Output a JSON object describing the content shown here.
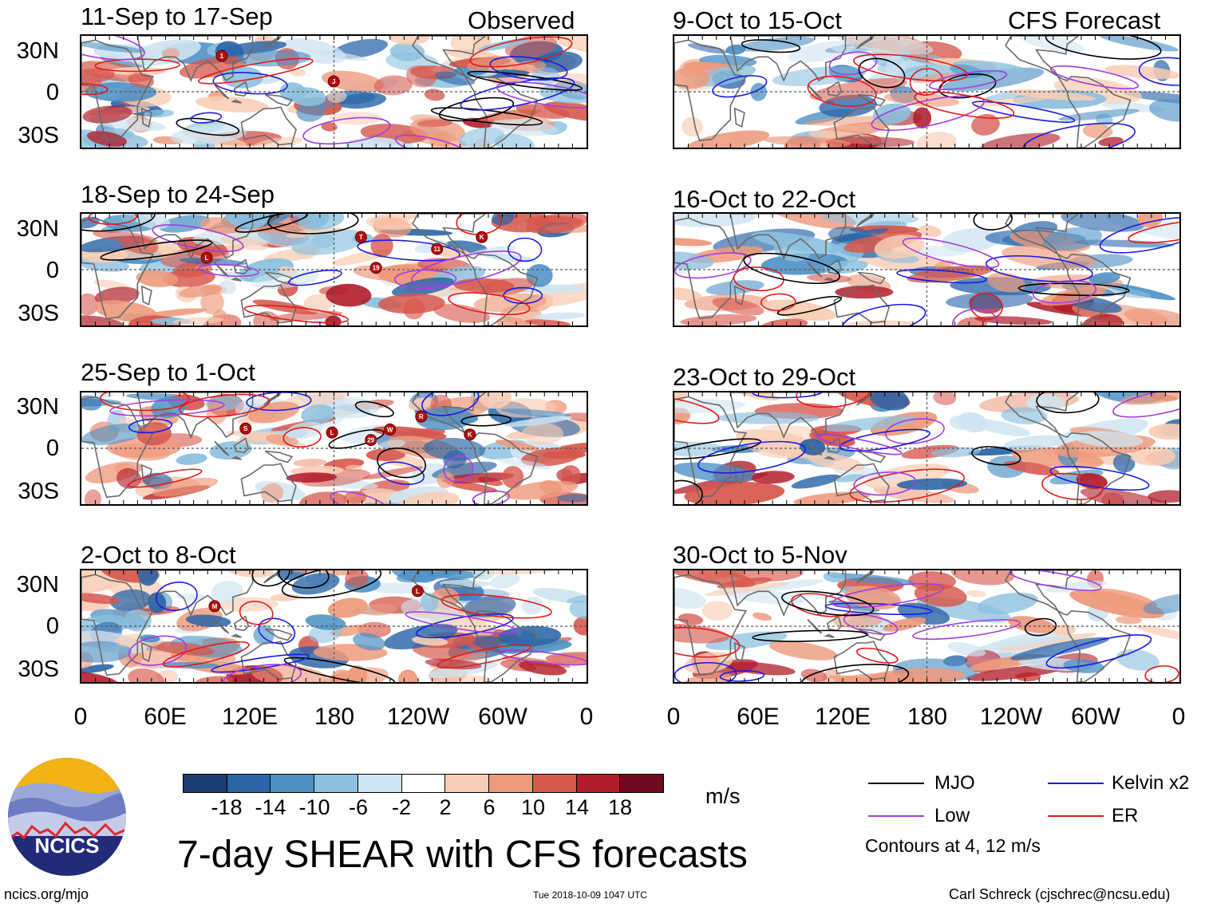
{
  "observed_label": "Observed",
  "forecast_label": "CFS Forecast",
  "chart_data": {
    "type": "heatmap",
    "title": "7-day SHEAR with CFS forecasts",
    "variable": "vertical wind shear anomaly",
    "units": "m/s",
    "y_ticks": [
      "30N",
      "0",
      "30S"
    ],
    "x_ticks": [
      "0",
      "60E",
      "120E",
      "180",
      "120W",
      "60W",
      "0"
    ],
    "x_range": [
      0,
      360
    ],
    "y_range": [
      -40,
      40
    ],
    "colorbar": {
      "levels": [
        "-18",
        "-14",
        "-10",
        "-6",
        "-2",
        "2",
        "6",
        "10",
        "14",
        "18"
      ],
      "colors": [
        "#1a3c6e",
        "#2b65a8",
        "#4c90c4",
        "#8cc0de",
        "#cfe4f1",
        "#ffffff",
        "#f9cdb5",
        "#ee9a7c",
        "#d6574c",
        "#b01d2a",
        "#6e0a1e"
      ]
    },
    "panels": [
      {
        "id": "obs-1",
        "column": "observed",
        "period": "11-Sep to 17-Sep",
        "storm_markers": [
          "1",
          "J"
        ]
      },
      {
        "id": "obs-2",
        "column": "observed",
        "period": "18-Sep to 24-Sep",
        "storm_markers": [
          "T",
          "19",
          "L",
          "11",
          "K"
        ]
      },
      {
        "id": "obs-3",
        "column": "observed",
        "period": "25-Sep to 1-Oct",
        "storm_markers": [
          "29",
          "K",
          "L",
          "W",
          "R",
          "S"
        ]
      },
      {
        "id": "obs-4",
        "column": "observed",
        "period": "2-Oct to 8-Oct",
        "storm_markers": [
          "L",
          "M"
        ]
      },
      {
        "id": "fc-1",
        "column": "forecast",
        "period": "9-Oct to 15-Oct",
        "storm_markers": []
      },
      {
        "id": "fc-2",
        "column": "forecast",
        "period": "16-Oct to 22-Oct",
        "storm_markers": []
      },
      {
        "id": "fc-3",
        "column": "forecast",
        "period": "23-Oct to 29-Oct",
        "storm_markers": []
      },
      {
        "id": "fc-4",
        "column": "forecast",
        "period": "30-Oct to 5-Nov",
        "storm_markers": []
      }
    ],
    "legend": [
      {
        "label": "MJO",
        "color": "#000000"
      },
      {
        "label": "Kelvin x2",
        "color": "#1c1ce0"
      },
      {
        "label": "Low",
        "color": "#a23ee0"
      },
      {
        "label": "ER",
        "color": "#e01c1c"
      }
    ],
    "contour_note": "Contours at 4, 12 m/s"
  },
  "logo_text": "NCICS",
  "footer": {
    "left": "ncics.org/mjo",
    "center": "Tue 2018-10-09 1047 UTC",
    "right": "Carl Schreck (cjschrec@ncsu.edu)"
  }
}
